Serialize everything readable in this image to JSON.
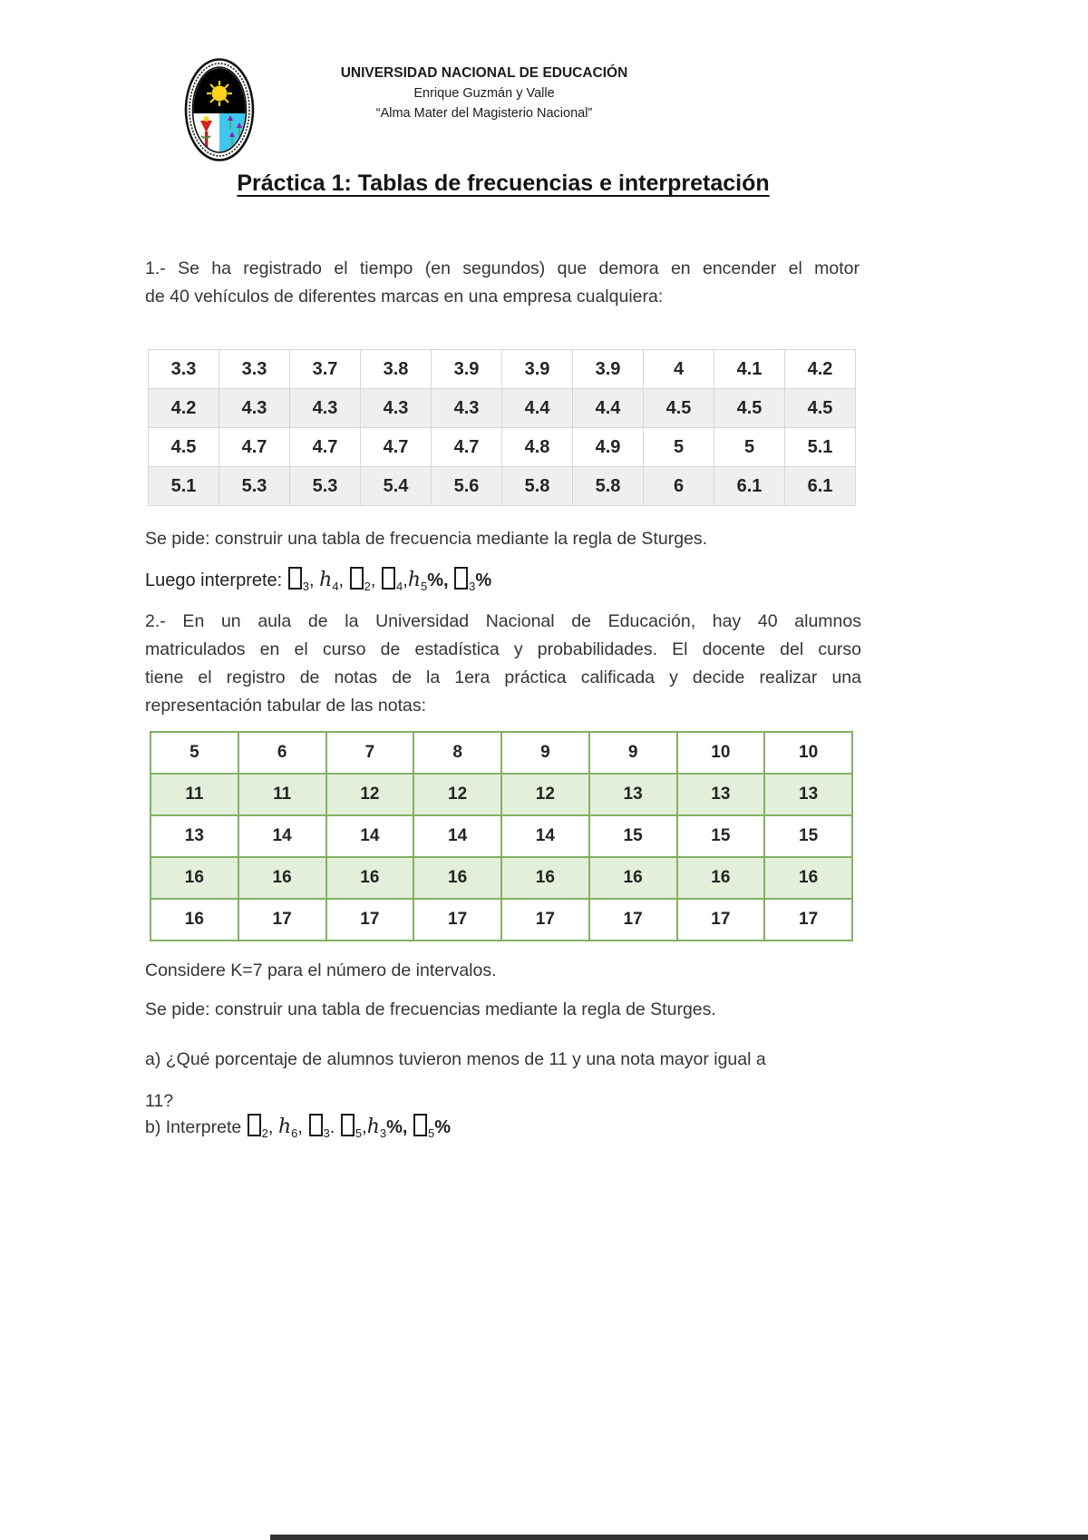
{
  "header": {
    "university": "UNIVERSIDAD NACIONAL DE EDUCACIÓN",
    "subtitle": "Enrique Guzmán y Valle",
    "motto": "“Alma Mater del Magisterio Nacional”",
    "logo_name": "university-seal"
  },
  "title": "Práctica 1: Tablas de frecuencias e interpretación",
  "problem1": {
    "statement_lines": [
      "1.- Se ha registrado el tiempo (en segundos) que demora en encender el motor",
      "de 40 vehículos de diferentes marcas en una empresa cualquiera:"
    ],
    "table": {
      "border_color": "#d6d6d6",
      "striped_bg": "#efefef",
      "rows": [
        [
          "3.3",
          "3.3",
          "3.7",
          "3.8",
          "3.9",
          "3.9",
          "3.9",
          "4",
          "4.1",
          "4.2"
        ],
        [
          "4.2",
          "4.3",
          "4.3",
          "4.3",
          "4.3",
          "4.4",
          "4.4",
          "4.5",
          "4.5",
          "4.5"
        ],
        [
          "4.5",
          "4.7",
          "4.7",
          "4.7",
          "4.7",
          "4.8",
          "4.9",
          "5",
          "5",
          "5.1"
        ],
        [
          "5.1",
          "5.3",
          "5.3",
          "5.4",
          "5.6",
          "5.8",
          "5.8",
          "6",
          "6.1",
          "6.1"
        ]
      ]
    },
    "request": "Se pide: construir una tabla de frecuencia mediante la regla de Sturges.",
    "interpret_prefix": "Luego interprete: ",
    "interpret_tokens": [
      {
        "box": true,
        "sub": "3",
        "sep": ", "
      },
      {
        "base": "h",
        "sub": "4",
        "sep": ", "
      },
      {
        "box": true,
        "sub": "2",
        "sep": ", "
      },
      {
        "box": true,
        "sub": "4",
        "sep": ","
      },
      {
        "base": "h",
        "sub": "5",
        "pct": true,
        "sep": ", ",
        "sepBold": true
      },
      {
        "box": true,
        "sub": "3",
        "pct": true
      }
    ]
  },
  "problem2": {
    "statement_lines": [
      "2.- En un aula de la Universidad Nacional de Educación, hay 40 alumnos",
      "matriculados en el curso de estadística y probabilidades. El docente del curso",
      "tiene el registro de notas de la 1era práctica calificada y decide realizar una",
      "representación tabular de las notas:"
    ],
    "table": {
      "border_color": "#82b163",
      "striped_bg": "#e4efdb",
      "rows": [
        [
          "5",
          "6",
          "7",
          "8",
          "9",
          "9",
          "10",
          "10"
        ],
        [
          "11",
          "11",
          "12",
          "12",
          "12",
          "13",
          "13",
          "13"
        ],
        [
          "13",
          "14",
          "14",
          "14",
          "14",
          "15",
          "15",
          "15"
        ],
        [
          "16",
          "16",
          "16",
          "16",
          "16",
          "16",
          "16",
          "16"
        ],
        [
          "16",
          "17",
          "17",
          "17",
          "17",
          "17",
          "17",
          "17"
        ]
      ]
    },
    "note_k": "Considere K=7 para el número de intervalos.",
    "request": "Se pide: construir una tabla de frecuencias mediante la regla de Sturges.",
    "question_a_lines": [
      "a) ¿Qué porcentaje de alumnos tuvieron menos de 11 y una nota mayor igual a",
      "11?"
    ],
    "question_b_prefix": "b) Interprete ",
    "interpret_tokens": [
      {
        "box": true,
        "sub": "2",
        "sep": ", "
      },
      {
        "base": "h",
        "sub": "6",
        "sep": ", "
      },
      {
        "box": true,
        "sub": "3",
        "sep": ". "
      },
      {
        "box": true,
        "sub": "5",
        "sep": ","
      },
      {
        "base": "h",
        "sub": "3",
        "pct": true,
        "sep": ", ",
        "sepBold": true
      },
      {
        "box": true,
        "sub": "5",
        "pct": true
      }
    ]
  }
}
